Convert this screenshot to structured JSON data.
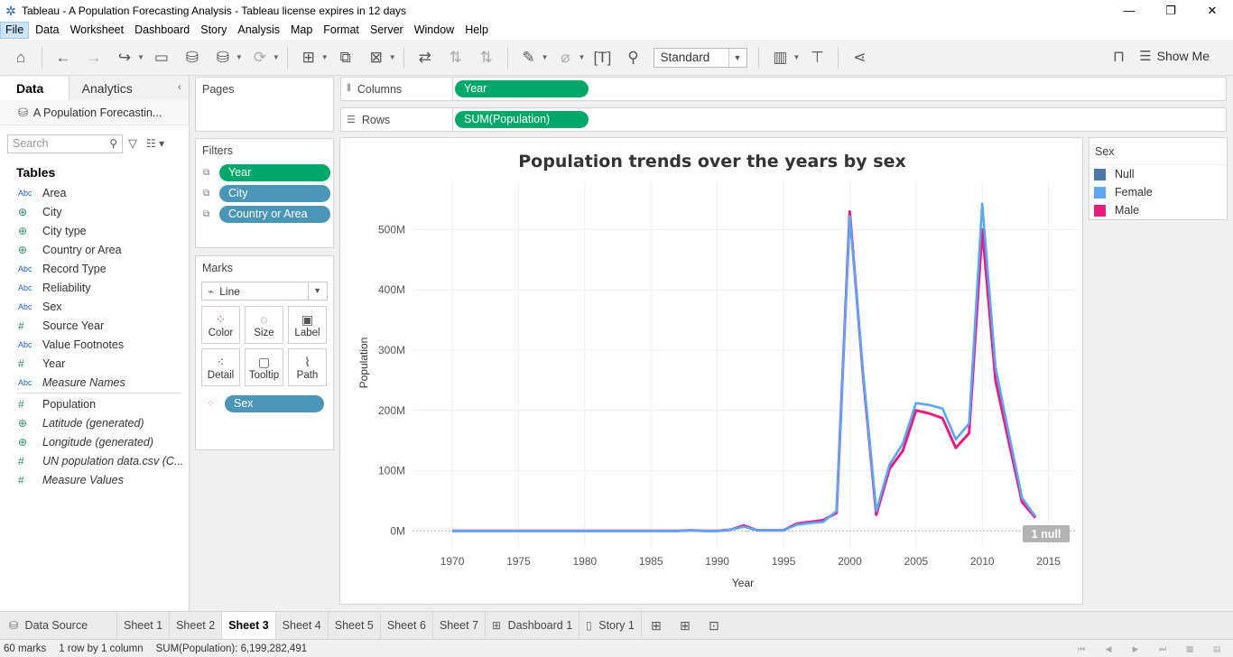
{
  "window": {
    "title": "Tableau - A Population Forecasting Analysis - Tableau license expires in 12 days",
    "minimize": "—",
    "maximize": "❐",
    "close": "✕"
  },
  "menu": [
    "File",
    "Data",
    "Worksheet",
    "Dashboard",
    "Story",
    "Analysis",
    "Map",
    "Format",
    "Server",
    "Window",
    "Help"
  ],
  "toolbar": {
    "fit_select": "Standard",
    "show_me": "Show Me"
  },
  "data_pane": {
    "tab_data": "Data",
    "tab_analytics": "Analytics",
    "data_source": "A Population Forecastin...",
    "search_placeholder": "Search",
    "tables_heading": "Tables",
    "dimensions": [
      {
        "type": "Abc",
        "name": "Area"
      },
      {
        "type": "geo",
        "name": "City"
      },
      {
        "type": "geo",
        "name": "City type"
      },
      {
        "type": "geo",
        "name": "Country or Area"
      },
      {
        "type": "Abc",
        "name": "Record Type"
      },
      {
        "type": "Abc",
        "name": "Reliability"
      },
      {
        "type": "Abc",
        "name": "Sex"
      },
      {
        "type": "num",
        "name": "Source Year"
      },
      {
        "type": "Abc",
        "name": "Value Footnotes"
      },
      {
        "type": "num",
        "name": "Year"
      },
      {
        "type": "Abc",
        "name": "Measure Names",
        "italic": true
      }
    ],
    "measures": [
      {
        "type": "num",
        "name": "Population"
      },
      {
        "type": "geo",
        "name": "Latitude (generated)",
        "italic": true
      },
      {
        "type": "geo",
        "name": "Longitude (generated)",
        "italic": true
      },
      {
        "type": "num",
        "name": "UN population data.csv (C...",
        "italic": true
      },
      {
        "type": "num",
        "name": "Measure Values",
        "italic": true
      }
    ]
  },
  "pages": {
    "title": "Pages"
  },
  "filters": {
    "title": "Filters",
    "items": [
      {
        "label": "Year",
        "color": "green"
      },
      {
        "label": "City",
        "color": "blue"
      },
      {
        "label": "Country or Area",
        "color": "blue"
      }
    ]
  },
  "marks": {
    "title": "Marks",
    "type": "Line",
    "buttons": [
      "Color",
      "Size",
      "Label",
      "Detail",
      "Tooltip",
      "Path"
    ],
    "color_pill": "Sex"
  },
  "shelves": {
    "columns_label": "Columns",
    "columns_pill": "Year",
    "rows_label": "Rows",
    "rows_pill": "SUM(Population)"
  },
  "legend": {
    "title": "Sex",
    "items": [
      {
        "label": "Null",
        "color": "#4e79a7"
      },
      {
        "label": "Female",
        "color": "#59a7f5"
      },
      {
        "label": "Male",
        "color": "#ea1c80"
      }
    ]
  },
  "chart_data": {
    "type": "line",
    "title": "Population trends over the years by sex",
    "xlabel": "Year",
    "ylabel": "Population",
    "x_ticks": [
      1970,
      1975,
      1980,
      1985,
      1990,
      1995,
      2000,
      2005,
      2010,
      2015
    ],
    "y_ticks": [
      0,
      100000000,
      200000000,
      300000000,
      400000000,
      500000000
    ],
    "y_tick_labels": [
      "0M",
      "100M",
      "200M",
      "300M",
      "400M",
      "500M"
    ],
    "xlim": [
      1967,
      2017
    ],
    "ylim": [
      -28000000,
      580000000
    ],
    "null_badge": "1 null",
    "series": [
      {
        "name": "Male",
        "color": "#ea1c80",
        "x": [
          1970,
          1971,
          1972,
          1973,
          1974,
          1975,
          1976,
          1977,
          1978,
          1979,
          1980,
          1981,
          1982,
          1983,
          1984,
          1985,
          1986,
          1987,
          1988,
          1989,
          1990,
          1991,
          1992,
          1993,
          1994,
          1995,
          1996,
          1997,
          1998,
          1999,
          2000,
          2001,
          2002,
          2003,
          2004,
          2005,
          2006,
          2007,
          2008,
          2009,
          2010,
          2011,
          2012,
          2013,
          2014
        ],
        "values": [
          0,
          0,
          0,
          0,
          0,
          0,
          0,
          0,
          0,
          0,
          0,
          0,
          0,
          0,
          0,
          0,
          0,
          0,
          1000000,
          0,
          0,
          2000000,
          9000000,
          1000000,
          1000000,
          1000000,
          12000000,
          15000000,
          18000000,
          30000000,
          530000000,
          260000000,
          27000000,
          103000000,
          133000000,
          200000000,
          195000000,
          187000000,
          138000000,
          162000000,
          500000000,
          250000000,
          148000000,
          48000000,
          22000000
        ]
      },
      {
        "name": "Female",
        "color": "#59a7f5",
        "x": [
          1970,
          1971,
          1972,
          1973,
          1974,
          1975,
          1976,
          1977,
          1978,
          1979,
          1980,
          1981,
          1982,
          1983,
          1984,
          1985,
          1986,
          1987,
          1988,
          1989,
          1990,
          1991,
          1992,
          1993,
          1994,
          1995,
          1996,
          1997,
          1998,
          1999,
          2000,
          2001,
          2002,
          2003,
          2004,
          2005,
          2006,
          2007,
          2008,
          2009,
          2010,
          2011,
          2012,
          2013,
          2014
        ],
        "values": [
          0,
          0,
          0,
          0,
          0,
          0,
          0,
          0,
          0,
          0,
          0,
          0,
          0,
          0,
          0,
          0,
          0,
          0,
          1000000,
          0,
          0,
          2000000,
          7000000,
          1000000,
          1000000,
          1000000,
          10000000,
          13000000,
          15000000,
          33000000,
          522000000,
          265000000,
          33000000,
          110000000,
          145000000,
          212000000,
          209000000,
          203000000,
          152000000,
          178000000,
          543000000,
          272000000,
          162000000,
          55000000,
          24000000
        ]
      }
    ]
  },
  "sheet_tabs": {
    "data_source": "Data Source",
    "tabs": [
      "Sheet 1",
      "Sheet 2",
      "Sheet 3",
      "Sheet 4",
      "Sheet 5",
      "Sheet 6",
      "Sheet 7",
      "Dashboard 1",
      "Story 1"
    ],
    "active": "Sheet 3"
  },
  "status": {
    "marks": "60 marks",
    "dims": "1 row by 1 column",
    "sum": "SUM(Population): 6,199,282,491"
  }
}
